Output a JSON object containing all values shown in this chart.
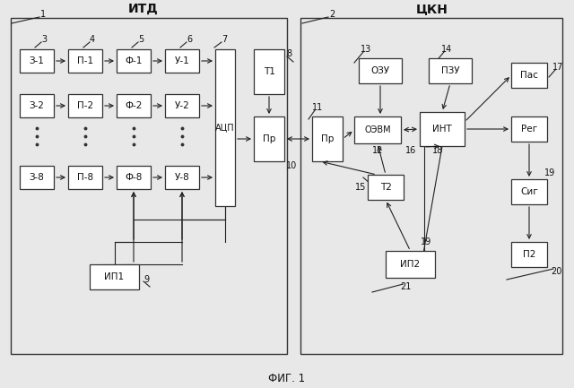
{
  "bg_color": "#e8e8e8",
  "title": "ФИГ. 1",
  "itd_label": "ИТД",
  "ckn_label": "ЦКН",
  "box_facecolor": "white",
  "box_edgecolor": "#333333",
  "line_color": "#222222",
  "text_color": "#111111"
}
